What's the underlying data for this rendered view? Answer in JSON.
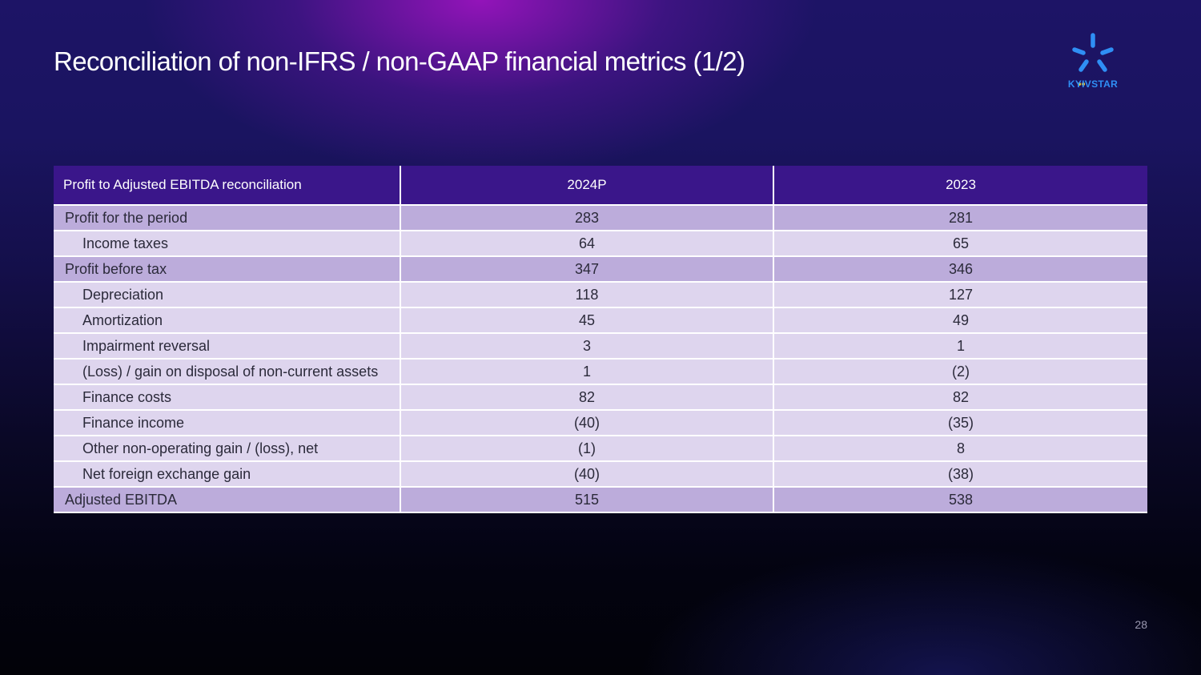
{
  "slide": {
    "title": "Reconciliation of non-IFRS / non-GAAP financial metrics (1/2)",
    "page_number": "28"
  },
  "logo": {
    "text": "KYIVSTAR",
    "icon": "kyivstar-star-icon",
    "colors": {
      "rays": "#2f8ff5",
      "dots": "#f5d020"
    }
  },
  "table": {
    "headers": [
      "Profit to Adjusted EBITDA reconciliation",
      "2024P",
      "2023"
    ],
    "rows": [
      {
        "label": "Profit for the period",
        "v2024": "283",
        "v2023": "281",
        "level": 0
      },
      {
        "label": "Income taxes",
        "v2024": "64",
        "v2023": "65",
        "level": 1
      },
      {
        "label": "Profit before tax",
        "v2024": "347",
        "v2023": "346",
        "level": 0
      },
      {
        "label": "Depreciation",
        "v2024": "118",
        "v2023": "127",
        "level": 1
      },
      {
        "label": "Amortization",
        "v2024": "45",
        "v2023": "49",
        "level": 1
      },
      {
        "label": "Impairment reversal",
        "v2024": "3",
        "v2023": "1",
        "level": 1
      },
      {
        "label": "(Loss) / gain on disposal of non-current assets",
        "v2024": "1",
        "v2023": "(2)",
        "level": 1
      },
      {
        "label": "Finance costs",
        "v2024": "82",
        "v2023": "82",
        "level": 1
      },
      {
        "label": "Finance income",
        "v2024": "(40)",
        "v2023": "(35)",
        "level": 1
      },
      {
        "label": "Other non-operating gain / (loss), net",
        "v2024": "(1)",
        "v2023": "8",
        "level": 1
      },
      {
        "label": "Net foreign exchange gain",
        "v2024": "(40)",
        "v2023": "(38)",
        "level": 1
      },
      {
        "label": "Adjusted EBITDA",
        "v2024": "515",
        "v2023": "538",
        "level": 0
      }
    ]
  },
  "colors": {
    "header_bg": "#3a168a",
    "total_row_bg": "#bcacdb",
    "detail_row_bg": "#ded5ee"
  }
}
